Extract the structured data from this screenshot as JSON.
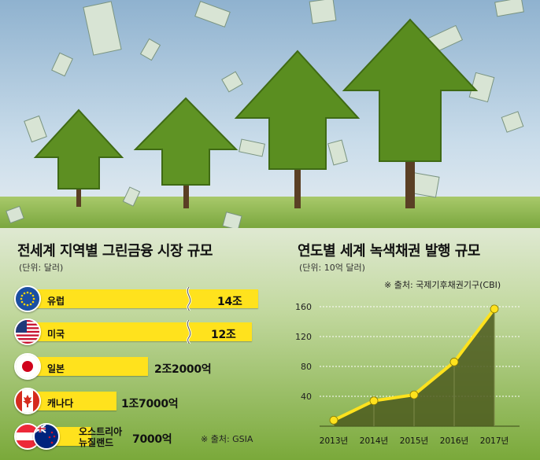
{
  "left_panel": {
    "title": "전세계 지역별 그린금융 시장 규모",
    "unit": "(단위: 달러)",
    "source": "※ 출처: GSIA"
  },
  "right_panel": {
    "title": "연도별 세계 녹색채권 발행 규모",
    "unit": "(단위: 10억 달러)",
    "source": "※ 출처: 국제기후채권기구(CBI)"
  },
  "colors": {
    "bar": "#ffe21d",
    "line": "#ffe21d",
    "area": "#4c5a1e",
    "grass": "#7fae3a"
  },
  "chart_data": [
    {
      "type": "bar",
      "orientation": "horizontal",
      "title": "전세계 지역별 그린금융 시장 규모",
      "unit": "(단위: 달러)",
      "categories": [
        "유럽",
        "미국",
        "일본",
        "캐나다",
        "오스트리아 뉴질랜드"
      ],
      "labels": [
        "14조",
        "12조",
        "2조2000억",
        "1조7000억",
        "7000억"
      ],
      "values": [
        14000000000000,
        12000000000000,
        2200000000000,
        1700000000000,
        700000000000
      ],
      "axis_break": true
    },
    {
      "type": "area",
      "title": "연도별 세계 녹색채권 발행 규모",
      "unit": "(단위: 10억 달러)",
      "categories": [
        "2013년",
        "2014년",
        "2015년",
        "2016년",
        "2017년"
      ],
      "values": [
        8,
        34,
        42,
        86,
        157
      ],
      "ylim": [
        0,
        160
      ],
      "yticks": [
        "40",
        "80",
        "120",
        "160"
      ],
      "grid": true
    }
  ]
}
